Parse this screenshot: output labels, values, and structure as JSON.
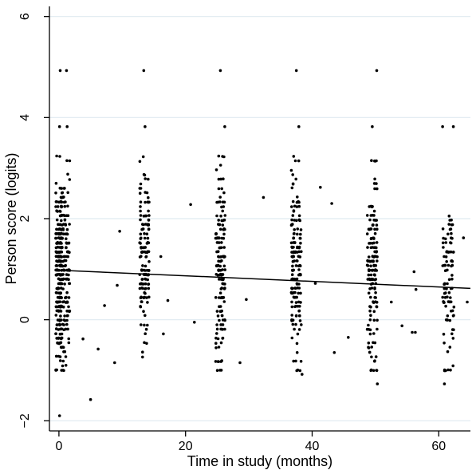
{
  "chart_data": {
    "type": "scatter",
    "title": "",
    "xlabel": "Time in study (months)",
    "ylabel": "Person score (logits)",
    "xlim": [
      -1.5,
      65
    ],
    "ylim": [
      -2.2,
      6.2
    ],
    "x_ticks": [
      0,
      20,
      40,
      60
    ],
    "y_ticks": [
      -2,
      0,
      2,
      4,
      6
    ],
    "y_tick_labels": [
      "−2",
      "0",
      "2",
      "4",
      "6"
    ],
    "grid": "horizontal",
    "legend": "none",
    "colors": {
      "points": "#000000",
      "fit_line": "#000000",
      "grid": "#dfeaf0",
      "axis": "#000000"
    },
    "clusters": [
      {
        "month": 0,
        "n_points": 220,
        "x_spread": 0.5,
        "y_mean": 1.0,
        "y_sd": 0.95
      },
      {
        "month": 1,
        "n_points": 140,
        "x_spread": 0.7,
        "y_mean": 1.0,
        "y_sd": 0.9
      },
      {
        "month": 13.5,
        "n_points": 140,
        "x_spread": 0.75,
        "y_mean": 1.3,
        "y_sd": 0.85
      },
      {
        "month": 25.5,
        "n_points": 155,
        "x_spread": 0.75,
        "y_mean": 1.05,
        "y_sd": 0.9
      },
      {
        "month": 37.5,
        "n_points": 155,
        "x_spread": 0.8,
        "y_mean": 1.0,
        "y_sd": 0.95
      },
      {
        "month": 49.5,
        "n_points": 155,
        "x_spread": 0.8,
        "y_mean": 1.0,
        "y_sd": 0.95
      },
      {
        "month": 61.5,
        "n_points": 95,
        "x_spread": 0.9,
        "y_mean": 0.8,
        "y_sd": 0.85
      }
    ],
    "outlier_points": [
      {
        "x": 0.2,
        "y": 4.93
      },
      {
        "x": 1.2,
        "y": 4.93
      },
      {
        "x": 13.4,
        "y": 4.93
      },
      {
        "x": 25.5,
        "y": 4.93
      },
      {
        "x": 37.5,
        "y": 4.93
      },
      {
        "x": 50.2,
        "y": 4.93
      },
      {
        "x": 0.1,
        "y": 3.82
      },
      {
        "x": 1.3,
        "y": 3.82
      },
      {
        "x": 13.6,
        "y": 3.82
      },
      {
        "x": 26.2,
        "y": 3.82
      },
      {
        "x": 37.9,
        "y": 3.82
      },
      {
        "x": 49.5,
        "y": 3.82
      },
      {
        "x": 60.6,
        "y": 3.82
      },
      {
        "x": 62.3,
        "y": 3.82
      },
      {
        "x": 5.0,
        "y": -1.58
      },
      {
        "x": 0.1,
        "y": -1.9
      },
      {
        "x": 50.3,
        "y": -1.27
      },
      {
        "x": 60.9,
        "y": -1.27
      },
      {
        "x": 38.4,
        "y": -1.08
      },
      {
        "x": 43.5,
        "y": -0.65
      },
      {
        "x": 8.8,
        "y": -0.85
      },
      {
        "x": 7.2,
        "y": 0.28
      },
      {
        "x": 9.2,
        "y": 0.68
      },
      {
        "x": 9.6,
        "y": 1.75
      },
      {
        "x": 20.8,
        "y": 2.28
      },
      {
        "x": 32.3,
        "y": 2.42
      },
      {
        "x": 41.3,
        "y": 2.62
      },
      {
        "x": 43.1,
        "y": 2.3
      },
      {
        "x": 16.1,
        "y": 1.25
      },
      {
        "x": 16.5,
        "y": -0.28
      },
      {
        "x": 21.4,
        "y": -0.05
      },
      {
        "x": 28.6,
        "y": -0.85
      },
      {
        "x": 29.6,
        "y": 0.4
      },
      {
        "x": 55.8,
        "y": -0.25
      },
      {
        "x": 56.3,
        "y": -0.25
      },
      {
        "x": 56.1,
        "y": 0.95
      },
      {
        "x": 56.4,
        "y": 0.6
      },
      {
        "x": 64.5,
        "y": 0.35
      },
      {
        "x": 45.7,
        "y": -0.35
      },
      {
        "x": 3.8,
        "y": -0.38
      },
      {
        "x": 6.2,
        "y": -0.58
      },
      {
        "x": 17.2,
        "y": 0.38
      },
      {
        "x": 40.5,
        "y": 0.72
      },
      {
        "x": 54.2,
        "y": -0.12
      },
      {
        "x": 63.9,
        "y": 1.62
      },
      {
        "x": 52.5,
        "y": 0.35
      }
    ],
    "fit_line": {
      "x": [
        0,
        65
      ],
      "y": [
        0.98,
        0.62
      ]
    }
  }
}
